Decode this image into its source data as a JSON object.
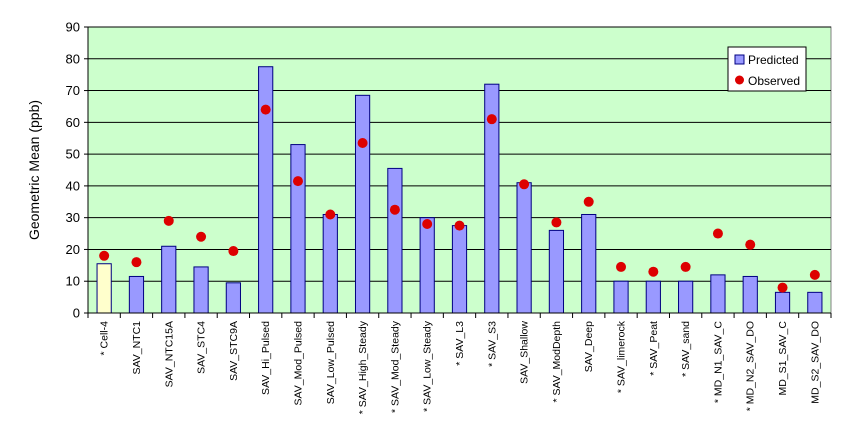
{
  "chart_data": {
    "type": "bar",
    "ylabel": "Geometric Mean (ppb)",
    "xlabel": "",
    "title": "",
    "ylim": [
      0,
      90
    ],
    "yticks": [
      0,
      10,
      20,
      30,
      40,
      50,
      60,
      70,
      80,
      90
    ],
    "grid": "horizontal",
    "legend_position": "top-right",
    "categories": [
      "* Cell-4",
      "SAV_NTC1",
      "SAV_NTC15A",
      "SAV_STC4",
      "SAV_STC9A",
      "SAV_Hi_Pulsed",
      "SAV_Mod_Pulsed",
      "SAV_Low_Pulsed",
      "* SAV_High_Steady",
      "* SAV_Mod_Steady",
      "* SAV_Low_Steady",
      "* SAV_L3",
      "* SAV_S3",
      "SAV_Shallow",
      "* SAV_ModDepth",
      "SAV_Deep",
      "* SAV_limerock",
      "* SAV_Peat",
      "* SAV_sand",
      "* MD_N1_SAV_C",
      "* MD_N2_SAV_DO",
      "MD_S1_SAV_C",
      "MD_S2_SAV_DO"
    ],
    "series": [
      {
        "name": "Predicted",
        "type": "bar",
        "values": [
          15.5,
          11.5,
          21,
          14.5,
          9.5,
          77.5,
          53,
          31,
          68.5,
          45.5,
          30,
          27.5,
          72,
          41,
          26,
          31,
          10,
          10,
          10,
          12,
          11.5,
          6.5,
          6.5
        ]
      },
      {
        "name": "Observed",
        "type": "scatter",
        "values": [
          18,
          16,
          29,
          24,
          19.5,
          64,
          41.5,
          31,
          53.5,
          32.5,
          28,
          27.5,
          61,
          40.5,
          28.5,
          35,
          14.5,
          13,
          14.5,
          25,
          21.5,
          8,
          12
        ]
      }
    ]
  },
  "colors": {
    "plot_bg": "#ccffcc",
    "bar_fill": "#9999ff",
    "bar_fill_highlight": "#ffffcc",
    "bar_stroke": "#000080",
    "marker_fill": "#dd0000",
    "grid": "#000000"
  },
  "highlight_index": 0
}
